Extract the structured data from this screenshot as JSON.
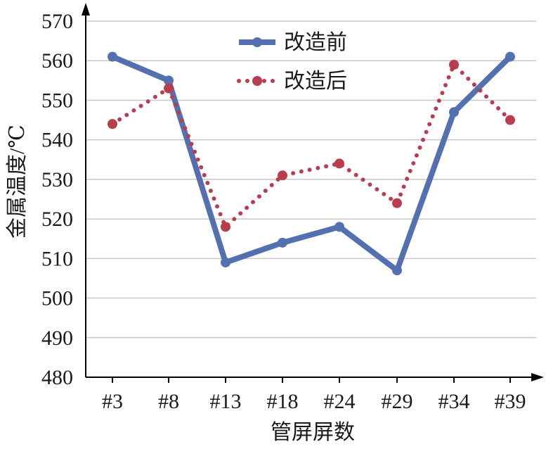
{
  "chart_data": {
    "type": "line",
    "title": "",
    "xlabel": "管屏屏数",
    "ylabel": "金属温度/℃",
    "categories": [
      "#3",
      "#8",
      "#13",
      "#18",
      "#24",
      "#29",
      "#34",
      "#39"
    ],
    "ylim": [
      480,
      570
    ],
    "yticks": [
      480,
      490,
      500,
      510,
      520,
      530,
      540,
      550,
      560,
      570
    ],
    "grid": true,
    "legend_position": "top-center",
    "series": [
      {
        "name": "改造前",
        "values": [
          561,
          555,
          509,
          514,
          518,
          507,
          547,
          561
        ],
        "color": "#5470b0",
        "style": "solid"
      },
      {
        "name": "改造后",
        "values": [
          544,
          553,
          518,
          531,
          534,
          524,
          559,
          545
        ],
        "color": "#b83d4f",
        "style": "dotted"
      }
    ]
  }
}
